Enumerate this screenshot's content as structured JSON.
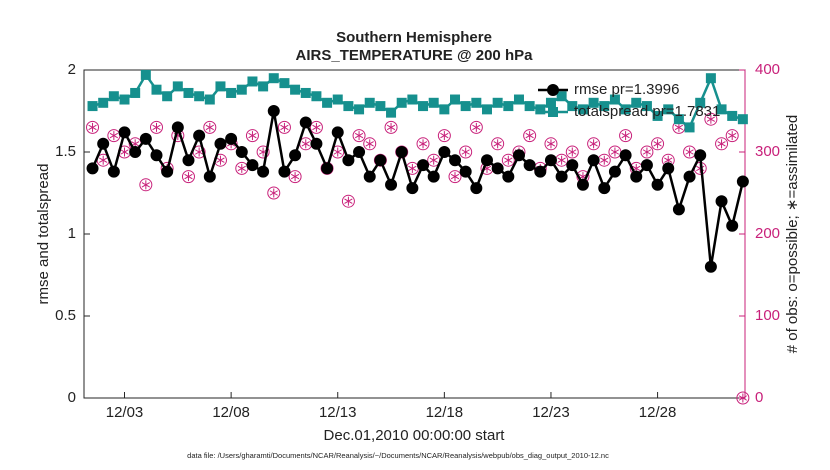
{
  "chart_data": {
    "type": "line",
    "title": [
      "Southern Hemisphere",
      "AIRS_TEMPERATURE @ 200 hPa"
    ],
    "xlabel": "Dec.01,2010 00:00:00 start",
    "ylabel": "rmse and totalspread",
    "y2label": "# of obs: o=possible; ∗=assimilated",
    "footnote": "data file: /Users/gharamti/Documents/NCAR/Reanalysis/~/Documents/NCAR/Reanalysis/webpub/obs_diag_output_2010-12.nc",
    "x": [
      0.5,
      1.0,
      1.5,
      2.0,
      2.5,
      3.0,
      3.5,
      4.0,
      4.5,
      5.0,
      5.5,
      6.0,
      6.5,
      7.0,
      7.5,
      8.0,
      8.5,
      9.0,
      9.5,
      10.0,
      10.5,
      11.0,
      11.5,
      12.0,
      12.5,
      13.0,
      13.5,
      14.0,
      14.5,
      15.0,
      15.5,
      16.0,
      16.5,
      17.0,
      17.5,
      18.0,
      18.5,
      19.0,
      19.5,
      20.0,
      20.5,
      21.0,
      21.5,
      22.0,
      22.5,
      23.0,
      23.5,
      24.0,
      24.5,
      25.0,
      25.5,
      26.0,
      26.5,
      27.0,
      27.5,
      28.0,
      28.5,
      29.0,
      29.5,
      30.0,
      30.5,
      31.0
    ],
    "xlim": [
      0.1,
      31.1
    ],
    "xticks": [
      {
        "value": 2,
        "label": "12/03"
      },
      {
        "value": 7,
        "label": "12/08"
      },
      {
        "value": 12,
        "label": "12/13"
      },
      {
        "value": 17,
        "label": "12/18"
      },
      {
        "value": 22,
        "label": "12/23"
      },
      {
        "value": 27,
        "label": "12/28"
      }
    ],
    "ylim": [
      0,
      2
    ],
    "yticks": [
      0,
      0.5,
      1,
      1.5,
      2
    ],
    "y2lim": [
      0,
      400
    ],
    "y2ticks": [
      0,
      100,
      200,
      300,
      400
    ],
    "y2color": "#c8207a",
    "legend": "top-right",
    "series": [
      {
        "name": "rmse pr=1.3996",
        "color": "#000000",
        "marker": "circle",
        "values": [
          1.4,
          1.55,
          1.38,
          1.62,
          1.5,
          1.58,
          1.48,
          1.38,
          1.65,
          1.45,
          1.6,
          1.35,
          1.55,
          1.58,
          1.5,
          1.42,
          1.38,
          1.75,
          1.38,
          1.48,
          1.68,
          1.55,
          1.4,
          1.62,
          1.45,
          1.5,
          1.35,
          1.45,
          1.3,
          1.5,
          1.28,
          1.42,
          1.35,
          1.5,
          1.45,
          1.38,
          1.28,
          1.45,
          1.4,
          1.35,
          1.48,
          1.42,
          1.38,
          1.45,
          1.35,
          1.42,
          1.3,
          1.45,
          1.28,
          1.38,
          1.48,
          1.35,
          1.42,
          1.3,
          1.4,
          1.15,
          1.35,
          1.48,
          0.8,
          1.2,
          1.05,
          1.32
        ]
      },
      {
        "name": "totalspread pr=1.7831",
        "color": "#16908e",
        "marker": "square",
        "values": [
          1.78,
          1.8,
          1.84,
          1.82,
          1.86,
          1.97,
          1.88,
          1.84,
          1.9,
          1.86,
          1.84,
          1.82,
          1.9,
          1.86,
          1.88,
          1.93,
          1.9,
          1.95,
          1.92,
          1.88,
          1.86,
          1.84,
          1.8,
          1.82,
          1.78,
          1.76,
          1.8,
          1.78,
          1.74,
          1.8,
          1.82,
          1.78,
          1.8,
          1.76,
          1.82,
          1.78,
          1.8,
          1.76,
          1.8,
          1.78,
          1.82,
          1.78,
          1.76,
          1.8,
          1.84,
          1.78,
          1.76,
          1.8,
          1.78,
          1.82,
          1.76,
          1.8,
          1.78,
          1.72,
          1.76,
          1.7,
          1.65,
          1.8,
          1.95,
          1.76,
          1.72,
          1.7
        ]
      },
      {
        "color": "#c8207a",
        "marker": "circle-asterisk",
        "axis": "y2",
        "values": [
          330,
          290,
          320,
          300,
          310,
          260,
          330,
          280,
          320,
          270,
          300,
          330,
          290,
          310,
          280,
          320,
          300,
          250,
          330,
          270,
          310,
          330,
          280,
          300,
          240,
          320,
          310,
          290,
          330,
          300,
          280,
          310,
          290,
          320,
          270,
          300,
          330,
          280,
          310,
          290,
          300,
          320,
          280,
          310,
          290,
          300,
          270,
          310,
          290,
          300,
          320,
          280,
          300,
          310,
          290,
          330,
          300,
          280,
          340,
          310,
          320,
          0
        ]
      }
    ]
  }
}
